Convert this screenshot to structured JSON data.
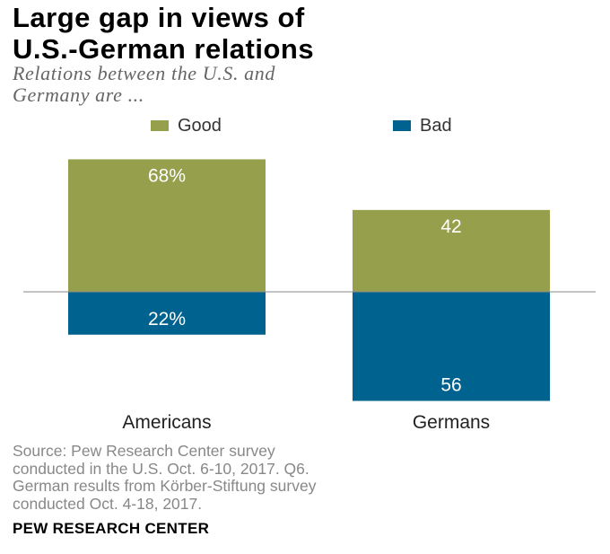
{
  "title_lines": [
    "Large gap in views of",
    "U.S.-German  relations"
  ],
  "subtitle_lines": [
    "Relations between the U.S. and",
    "Germany are ..."
  ],
  "legend": [
    {
      "label": "Good",
      "color": "#959f4c"
    },
    {
      "label": "Bad",
      "color": "#00628f"
    }
  ],
  "chart_data": {
    "type": "bar",
    "categories": [
      "Americans",
      "Germans"
    ],
    "series": [
      {
        "name": "Good",
        "values": [
          68,
          42
        ],
        "labels": [
          "68%",
          "42"
        ],
        "color": "#959f4c"
      },
      {
        "name": "Bad",
        "values": [
          22,
          56
        ],
        "labels": [
          "22%",
          "56"
        ],
        "color": "#00628f"
      }
    ],
    "ylim": [
      -60,
      70
    ],
    "grid": false,
    "legend_position": "top"
  },
  "source_lines": [
    "Source: Pew Research Center survey",
    "conducted in the U.S. Oct. 6-10, 2017. Q6.",
    "German results from Körber-Stiftung survey",
    "conducted Oct. 4-18, 2017."
  ],
  "brand": "PEW RESEARCH CENTER"
}
